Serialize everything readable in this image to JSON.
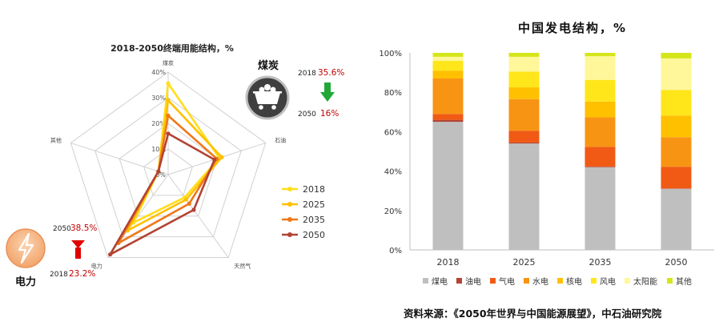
{
  "chart_data": [
    {
      "type": "radar",
      "title": "2018-2050终端用能结构，%",
      "axes": [
        "煤炭",
        "石油",
        "天然气",
        "电力",
        "其他"
      ],
      "rings": [
        0,
        10,
        20,
        30,
        40
      ],
      "ring_labels": [
        "0%",
        "10%",
        "20%",
        "30%",
        "40%"
      ],
      "max": 40,
      "legend_position": "right",
      "series": [
        {
          "name": "2018",
          "color": "#ffde1a",
          "values": [
            35.6,
            21,
            11,
            23.2,
            4
          ]
        },
        {
          "name": "2025",
          "color": "#ffc000",
          "values": [
            29,
            22,
            12,
            27,
            4
          ]
        },
        {
          "name": "2035",
          "color": "#f07818",
          "values": [
            23,
            20,
            14,
            33,
            4
          ]
        },
        {
          "name": "2050",
          "color": "#b24434",
          "values": [
            16,
            19,
            17,
            38.5,
            4
          ]
        }
      ],
      "callouts": {
        "coal": {
          "name": "煤炭",
          "year_a": "2018",
          "value_a": "35.6%",
          "year_b": "2050",
          "value_b": "16%",
          "trend": "down"
        },
        "power": {
          "name": "电力",
          "year_a": "2050",
          "value_a": "38.5%",
          "year_b": "2018",
          "value_b": "23.2%",
          "trend": "up"
        }
      }
    },
    {
      "type": "bar",
      "stacked": true,
      "title": "中国发电结构，%",
      "categories": [
        "2018",
        "2025",
        "2035",
        "2050"
      ],
      "ylim": [
        0,
        100
      ],
      "yticks": [
        "0%",
        "20%",
        "40%",
        "60%",
        "80%",
        "100%"
      ],
      "legend_position": "bottom",
      "series": [
        {
          "name": "煤电",
          "color": "#bfbfbf",
          "values": [
            65,
            54,
            42,
            31
          ]
        },
        {
          "name": "油电",
          "color": "#b24434",
          "values": [
            1,
            0.5,
            0.3,
            0.2
          ]
        },
        {
          "name": "气电",
          "color": "#f05a14",
          "values": [
            3,
            6,
            10,
            11
          ]
        },
        {
          "name": "水电",
          "color": "#f89414",
          "values": [
            18,
            16,
            15,
            15
          ]
        },
        {
          "name": "核电",
          "color": "#ffc000",
          "values": [
            4,
            6,
            8,
            11
          ]
        },
        {
          "name": "风电",
          "color": "#ffe61a",
          "values": [
            5,
            8,
            11,
            13
          ]
        },
        {
          "name": "太阳能",
          "color": "#fff799",
          "values": [
            2,
            7.5,
            12,
            16
          ]
        },
        {
          "name": "其他",
          "color": "#d4e61a",
          "values": [
            2,
            2,
            1.7,
            2.8
          ]
        }
      ]
    }
  ],
  "source_text": "资料来源：《2050年世界与中国能源展望》，中石油研究院",
  "icons": {
    "coal": "coal-cart-icon",
    "power": "lightning-bolt-icon",
    "down_arrow": "green-down-arrow-icon",
    "up_arrow": "red-up-arrow-icon"
  }
}
